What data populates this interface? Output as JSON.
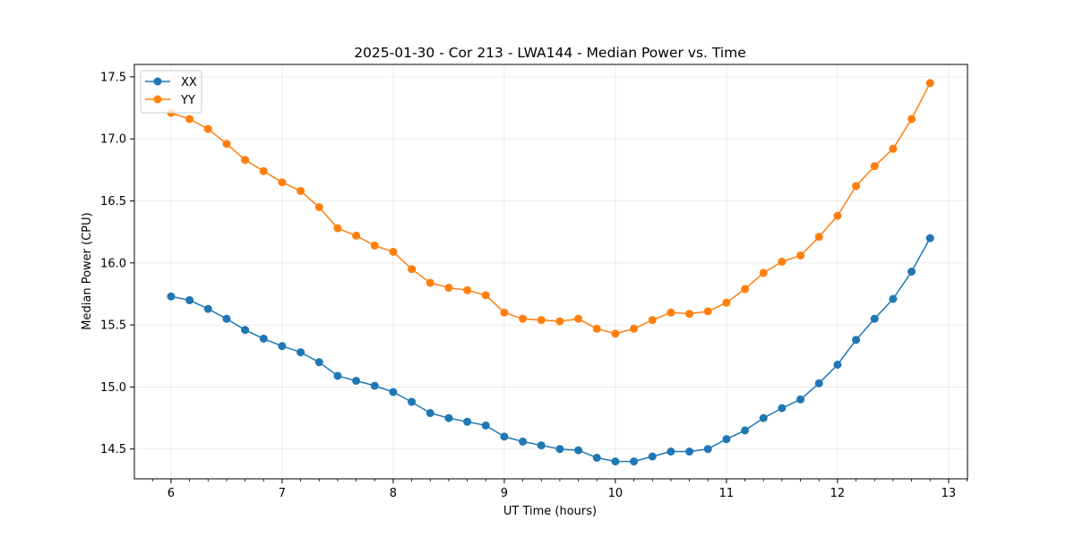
{
  "chart_data": {
    "type": "line",
    "title": "2025-01-30 - Cor 213 - LWA144 - Median Power vs. Time",
    "xlabel": "UT Time (hours)",
    "ylabel": "Median Power (CPU)",
    "xlim": [
      5.67,
      13.17
    ],
    "ylim": [
      14.26,
      17.6
    ],
    "xticks": [
      6,
      7,
      8,
      9,
      10,
      11,
      12,
      13
    ],
    "yticks": [
      14.5,
      15.0,
      15.5,
      16.0,
      16.5,
      17.0,
      17.5
    ],
    "grid": true,
    "legend_position": "top-left",
    "x": [
      6.0,
      6.1667,
      6.3333,
      6.5,
      6.6667,
      6.8333,
      7.0,
      7.1667,
      7.3333,
      7.5,
      7.6667,
      7.8333,
      8.0,
      8.1667,
      8.3333,
      8.5,
      8.6667,
      8.8333,
      9.0,
      9.1667,
      9.3333,
      9.5,
      9.6667,
      9.8333,
      10.0,
      10.1667,
      10.3333,
      10.5,
      10.6667,
      10.8333,
      11.0,
      11.1667,
      11.3333,
      11.5,
      11.6667,
      11.8333,
      12.0,
      12.1667,
      12.3333,
      12.5,
      12.6667,
      12.8333
    ],
    "series": [
      {
        "name": "XX",
        "color": "#1f77b4",
        "values": [
          15.73,
          15.7,
          15.63,
          15.55,
          15.46,
          15.39,
          15.33,
          15.28,
          15.2,
          15.09,
          15.05,
          15.01,
          14.96,
          14.88,
          14.79,
          14.75,
          14.72,
          14.69,
          14.6,
          14.56,
          14.53,
          14.5,
          14.49,
          14.43,
          14.4,
          14.4,
          14.44,
          14.48,
          14.48,
          14.5,
          14.58,
          14.65,
          14.75,
          14.83,
          14.9,
          15.03,
          15.18,
          15.38,
          15.55,
          15.71,
          15.93,
          16.2
        ]
      },
      {
        "name": "YY",
        "color": "#ff7f0e",
        "values": [
          17.21,
          17.16,
          17.08,
          16.96,
          16.83,
          16.74,
          16.65,
          16.58,
          16.45,
          16.28,
          16.22,
          16.14,
          16.09,
          15.95,
          15.84,
          15.8,
          15.78,
          15.74,
          15.6,
          15.55,
          15.54,
          15.53,
          15.55,
          15.47,
          15.43,
          15.47,
          15.54,
          15.6,
          15.59,
          15.61,
          15.68,
          15.79,
          15.92,
          16.01,
          16.06,
          16.21,
          16.38,
          16.62,
          16.78,
          16.92,
          17.16,
          17.45
        ]
      }
    ]
  }
}
